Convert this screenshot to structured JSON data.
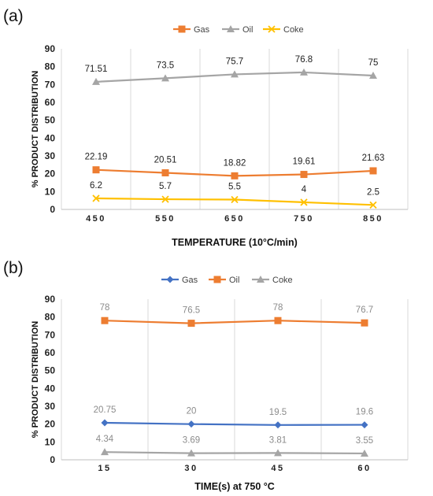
{
  "chart_data": [
    {
      "panel_label": "(a)",
      "type": "line",
      "categories": [
        "450",
        "550",
        "650",
        "750",
        "850"
      ],
      "series": [
        {
          "name": "Gas",
          "values": [
            22.19,
            20.51,
            18.82,
            19.61,
            21.63
          ],
          "color": "#ED7D31",
          "marker": "square"
        },
        {
          "name": "Oil",
          "values": [
            71.51,
            73.5,
            75.7,
            76.8,
            75
          ],
          "color": "#A5A5A5",
          "marker": "triangle"
        },
        {
          "name": "Coke",
          "values": [
            6.2,
            5.7,
            5.5,
            4,
            2.5
          ],
          "color": "#FFC000",
          "marker": "x"
        }
      ],
      "data_labels": [
        [
          "22.19",
          "20.51",
          "18.82",
          "19.61",
          "21.63"
        ],
        [
          "71.51",
          "73.5",
          "75.7",
          "76.8",
          "75"
        ],
        [
          "6.2",
          "5.7",
          "5.5",
          "4",
          "2.5"
        ]
      ],
      "ylim": [
        0,
        90
      ],
      "yticks": [
        "0",
        "10",
        "20",
        "30",
        "40",
        "50",
        "60",
        "70",
        "80",
        "90"
      ],
      "xlabel": "TEMPERATURE (10°C/min)",
      "ylabel": "% PRODUCT DISTRIBUTION",
      "legend": "top-center",
      "grid": "vertical",
      "label_color": "#222222"
    },
    {
      "panel_label": "(b)",
      "type": "line",
      "categories": [
        "15",
        "30",
        "45",
        "60"
      ],
      "series": [
        {
          "name": "Gas",
          "values": [
            20.75,
            20,
            19.5,
            19.6
          ],
          "color": "#4472C4",
          "marker": "diamond"
        },
        {
          "name": "Oil",
          "values": [
            78,
            76.5,
            78,
            76.7
          ],
          "color": "#ED7D31",
          "marker": "square"
        },
        {
          "name": "Coke",
          "values": [
            4.34,
            3.69,
            3.81,
            3.55
          ],
          "color": "#A5A5A5",
          "marker": "triangle"
        }
      ],
      "data_labels": [
        [
          "20.75",
          "20",
          "19.5",
          "19.6"
        ],
        [
          "78",
          "76.5",
          "78",
          "76.7"
        ],
        [
          "4.34",
          "3.69",
          "3.81",
          "3.55"
        ]
      ],
      "ylim": [
        0,
        90
      ],
      "yticks": [
        "0",
        "10",
        "20",
        "30",
        "40",
        "50",
        "60",
        "70",
        "80",
        "90"
      ],
      "xlabel": "TIME(s) at 750 °C",
      "ylabel": "% PRODUCT DISTRIBUTION",
      "legend": "top-center",
      "grid": "vertical",
      "label_color": "#8c8c8c"
    }
  ]
}
